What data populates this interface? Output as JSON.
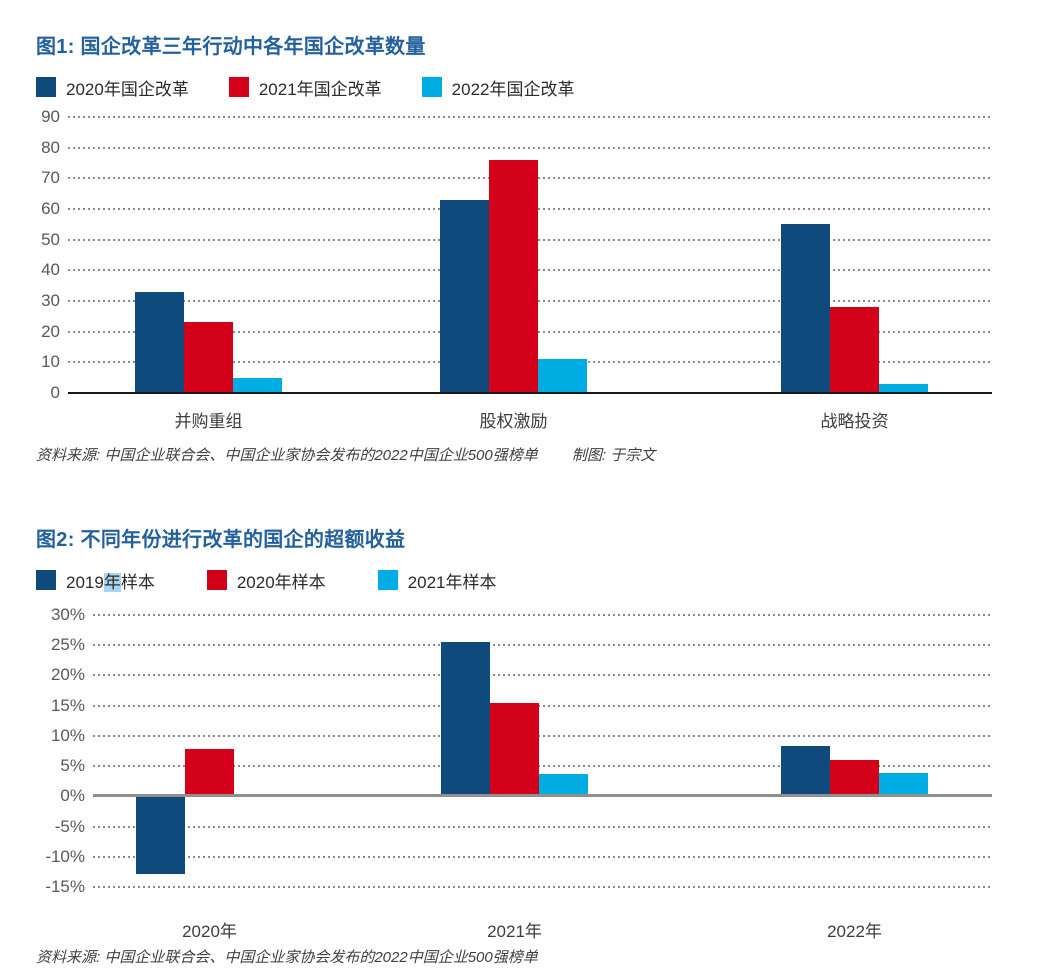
{
  "colors": {
    "navy": "#0F4A7D",
    "red": "#D30019",
    "cyan": "#00ADE2",
    "title_blue": "#24619C",
    "selection_highlight": "#A9D4F0"
  },
  "chart_data": [
    {
      "type": "bar",
      "title": "图1: 国企改革三年行动中各年国企改革数量",
      "categories": [
        "并购重组",
        "股权激励",
        "战略投资"
      ],
      "series": [
        {
          "name": "2020年国企改革",
          "color": "#0F4A7D",
          "values": [
            33,
            63,
            55
          ]
        },
        {
          "name": "2021年国企改革",
          "color": "#D30019",
          "values": [
            23,
            76,
            28
          ]
        },
        {
          "name": "2022年国企改革",
          "color": "#00ADE2",
          "values": [
            5,
            11,
            3
          ]
        }
      ],
      "xlabel": "",
      "ylabel": "",
      "ylim": [
        0,
        90
      ],
      "ytick_step": 10,
      "yticks": [
        "90",
        "80",
        "70",
        "60",
        "50",
        "40",
        "30",
        "20",
        "10",
        "0"
      ],
      "grid": "horizontal-dotted",
      "legend_position": "top",
      "source": "资料来源: 中国企业联合会、中国企业家协会发布的2022中国企业500强榜单",
      "credit": "制图: 于宗文"
    },
    {
      "type": "bar",
      "title": "图2: 不同年份进行改革的国企的超额收益",
      "categories": [
        "2020年",
        "2021年",
        "2022年"
      ],
      "series": [
        {
          "name": "2019年样本",
          "color": "#0F4A7D",
          "values": [
            -12.8,
            25.5,
            8.3
          ],
          "selected_text": "年"
        },
        {
          "name": "2020年样本",
          "color": "#D30019",
          "values": [
            7.8,
            15.5,
            6
          ]
        },
        {
          "name": "2021年样本",
          "color": "#00ADE2",
          "values": [
            null,
            3.7,
            3.8
          ]
        }
      ],
      "xlabel": "",
      "ylabel": "",
      "unit": "%",
      "ylim": [
        -15,
        30
      ],
      "ytick_step": 5,
      "yticks": [
        "30%",
        "25%",
        "20%",
        "15%",
        "10%",
        "5%",
        "0%",
        "-5%",
        "-10%",
        "-15%"
      ],
      "grid": "horizontal-dotted",
      "legend_position": "top",
      "source": "资料来源: 中国企业联合会、中国企业家协会发布的2022中国企业500强榜单"
    }
  ]
}
